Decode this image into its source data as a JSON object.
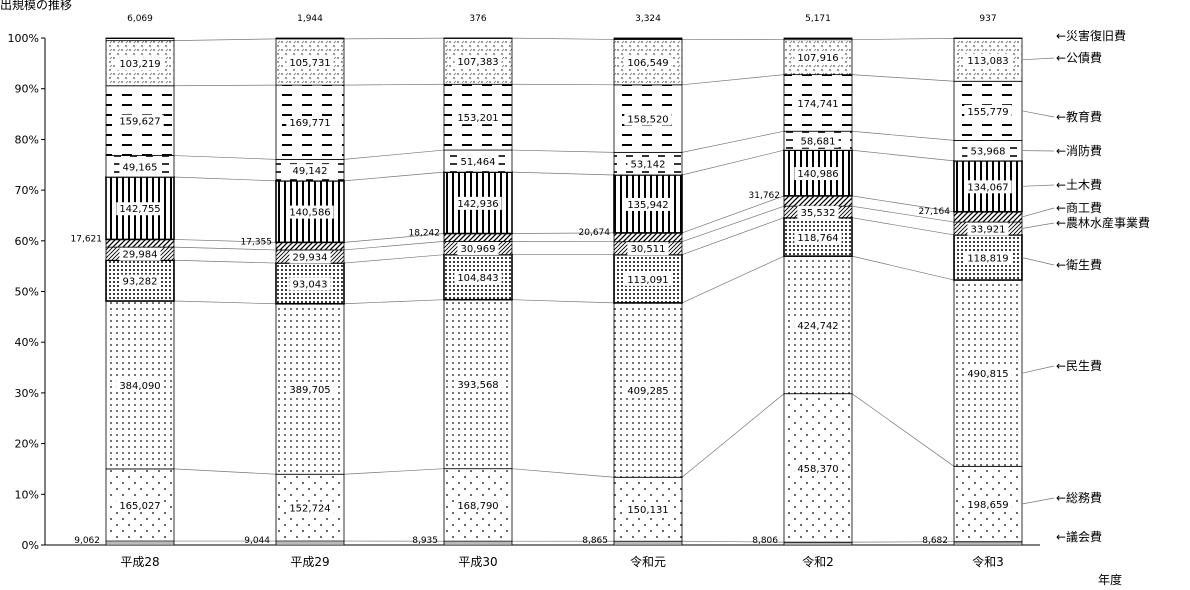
{
  "chart_data": {
    "type": "bar",
    "stacked": "percent",
    "title": "出規模の推移",
    "xlabel": "年度",
    "ylabel": "",
    "ylim": [
      0,
      100
    ],
    "y_ticks": [
      "0%",
      "10%",
      "20%",
      "30%",
      "40%",
      "50%",
      "60%",
      "70%",
      "80%",
      "90%",
      "100%"
    ],
    "categories": [
      "平成28",
      "平成29",
      "平成30",
      "令和元",
      "令和2",
      "令和3"
    ],
    "series": [
      {
        "name": "議会費",
        "legend": "←議会費",
        "values": [
          9062,
          9044,
          8935,
          8865,
          8806,
          8682
        ],
        "labels": [
          "9,062",
          "9,044",
          "8,935",
          "8,865",
          "8,806",
          "8,682"
        ]
      },
      {
        "name": "総務費",
        "legend": "←総務費",
        "values": [
          165027,
          152724,
          168790,
          150131,
          458370,
          198659
        ],
        "labels": [
          "165,027",
          "152,724",
          "168,790",
          "150,131",
          "458,370",
          "198,659"
        ]
      },
      {
        "name": "民生費",
        "legend": "←民生費",
        "values": [
          384090,
          389705,
          393568,
          409285,
          424742,
          490815
        ],
        "labels": [
          "384,090",
          "389,705",
          "393,568",
          "409,285",
          "424,742",
          "490,815"
        ]
      },
      {
        "name": "衛生費",
        "legend": "←衛生費",
        "values": [
          93282,
          93043,
          104843,
          113091,
          118764,
          118819
        ],
        "labels": [
          "93,282",
          "93,043",
          "104,843",
          "113,091",
          "118,764",
          "118,819"
        ]
      },
      {
        "name": "農林水産事業費",
        "legend": "←農林水産事業費",
        "values": [
          29984,
          29934,
          30969,
          30511,
          35532,
          33921
        ],
        "labels": [
          "29,984",
          "29,934",
          "30,969",
          "30,511",
          "35,532",
          "33,921"
        ]
      },
      {
        "name": "商工費",
        "legend": "←商工費",
        "values": [
          17621,
          17355,
          18242,
          20674,
          31762,
          27164
        ],
        "labels": [
          "17,621",
          "17,355",
          "18,242",
          "20,674",
          "31,762",
          "27,164"
        ]
      },
      {
        "name": "土木費",
        "legend": "←土木費",
        "values": [
          142755,
          140586,
          142936,
          135942,
          140986,
          134067
        ],
        "labels": [
          "142,755",
          "140,586",
          "142,936",
          "135,942",
          "140,986",
          "134,067"
        ]
      },
      {
        "name": "消防費",
        "legend": "←消防費",
        "values": [
          49165,
          49142,
          51464,
          53142,
          58681,
          53968
        ],
        "labels": [
          "49,165",
          "49,142",
          "51,464",
          "53,142",
          "58,681",
          "53,968"
        ]
      },
      {
        "name": "教育費",
        "legend": "←教育費",
        "values": [
          159627,
          169771,
          153201,
          158520,
          174741,
          155779
        ],
        "labels": [
          "159,627",
          "169,771",
          "153,201",
          "158,520",
          "174,741",
          "155,779"
        ]
      },
      {
        "name": "公債費",
        "legend": "←公債費",
        "values": [
          103219,
          105731,
          107383,
          106549,
          107916,
          113083
        ],
        "labels": [
          "103,219",
          "105,731",
          "107,383",
          "106,549",
          "107,916",
          "113,083"
        ]
      },
      {
        "name": "災害復旧費",
        "legend": "←災害復旧費",
        "values": [
          6069,
          1944,
          376,
          3324,
          5171,
          937
        ],
        "labels": [
          "6,069",
          "1,944",
          "376",
          "3,324",
          "5,171",
          "937"
        ]
      }
    ],
    "grid": false,
    "legend_position": "right"
  }
}
